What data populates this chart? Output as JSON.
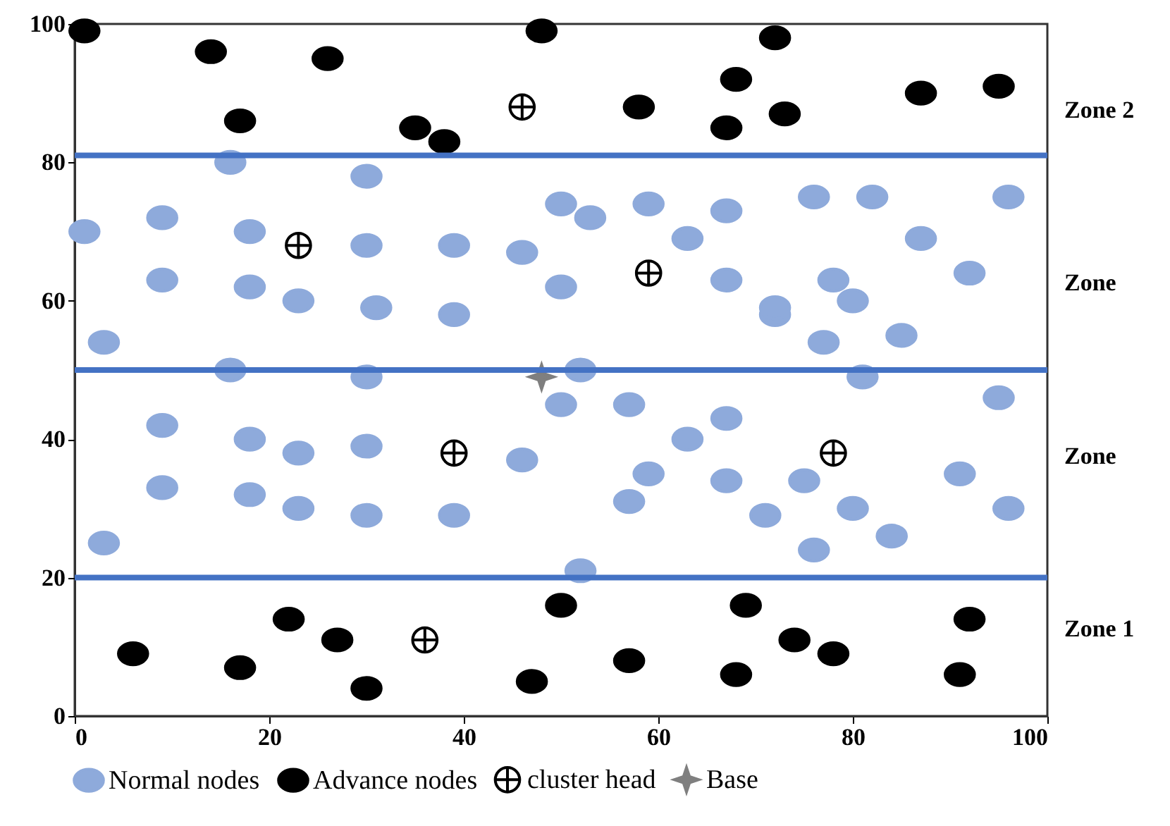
{
  "chart_data": {
    "type": "scatter",
    "xlim": [
      0,
      100
    ],
    "ylim": [
      0,
      100
    ],
    "xticks": [
      0,
      20,
      40,
      60,
      80,
      100
    ],
    "yticks": [
      0,
      20,
      40,
      60,
      80,
      100
    ],
    "legend": "bottom",
    "series": [
      {
        "name": "Normal nodes",
        "color": "#8eaadb",
        "marker": "circle",
        "x": [
          1,
          9,
          16,
          18,
          30,
          30,
          39,
          46,
          50,
          50,
          53,
          59,
          67,
          63,
          76,
          82,
          96,
          87,
          9,
          18,
          23,
          31,
          39,
          3,
          16,
          30,
          67,
          78,
          92,
          80,
          72,
          72,
          77,
          85,
          52,
          81,
          9,
          18,
          23,
          30,
          46,
          9,
          18,
          23,
          30,
          39,
          3,
          50,
          57,
          67,
          63,
          95,
          59,
          57,
          67,
          71,
          75,
          80,
          91,
          96,
          76,
          84,
          52
        ],
        "values": [
          70,
          72,
          80,
          70,
          78,
          68,
          68,
          67,
          74,
          62,
          72,
          74,
          73,
          69,
          75,
          75,
          75,
          69,
          63,
          62,
          60,
          59,
          58,
          54,
          50,
          49,
          63,
          63,
          64,
          60,
          58,
          59,
          54,
          55,
          50,
          49,
          42,
          40,
          38,
          39,
          37,
          33,
          32,
          30,
          29,
          29,
          25,
          45,
          45,
          43,
          40,
          46,
          35,
          31,
          34,
          29,
          34,
          30,
          35,
          30,
          24,
          26,
          21
        ]
      },
      {
        "name": "Advance nodes",
        "color": "#000000",
        "marker": "circle",
        "x": [
          1,
          14,
          26,
          17,
          35,
          38,
          48,
          72,
          68,
          58,
          73,
          67,
          87,
          95,
          6,
          17,
          22,
          27,
          30,
          47,
          50,
          69,
          57,
          68,
          74,
          78,
          92,
          91
        ],
        "values": [
          99,
          96,
          95,
          86,
          85,
          83,
          99,
          98,
          92,
          88,
          87,
          85,
          90,
          91,
          9,
          7,
          14,
          11,
          4,
          5,
          16,
          16,
          8,
          6,
          11,
          9,
          14,
          6
        ]
      },
      {
        "name": "cluster head",
        "color": "#000000",
        "marker": "cross",
        "x": [
          46,
          23,
          59,
          39,
          36,
          78
        ],
        "values": [
          88,
          68,
          64,
          38,
          11,
          38
        ]
      },
      {
        "name": "Base",
        "color": "#7f7f7f",
        "marker": "star",
        "x": [
          48
        ],
        "values": [
          49
        ]
      }
    ],
    "ref_lines": [
      {
        "axis": "y",
        "value": 81,
        "color": "#4472c4"
      },
      {
        "axis": "y",
        "value": 50,
        "color": "#4472c4"
      },
      {
        "axis": "y",
        "value": 20,
        "color": "#4472c4"
      }
    ],
    "annotations": [
      "Zone 2",
      "Zone",
      "Zone",
      "Zone 1"
    ]
  }
}
